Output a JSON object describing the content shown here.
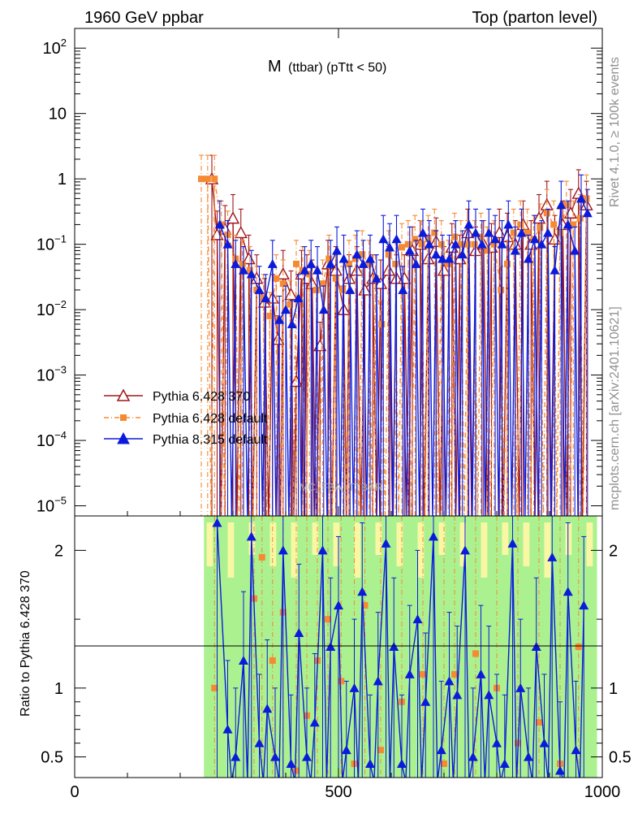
{
  "header": {
    "left": "1960 GeV ppbar",
    "right": "Top (parton level)"
  },
  "side_text": {
    "rivet": "Rivet 4.1.0, ≥ 100k events",
    "mcplots": "mcplots.cern.ch [arXiv:2401.10621]"
  },
  "chart_data": {
    "type": "line",
    "title": "M (ttbar) (pTtt < 50)",
    "title_main": "M",
    "title_sub": "(ttbar) (pTtt < 50)",
    "watermark": "MC_FBA_TTBAR",
    "xlabel": "",
    "ylabel": "",
    "ratio_ylabel": "Ratio to Pythia 6.428 370",
    "xlim": [
      0,
      1000
    ],
    "ylim_log": [
      7e-06,
      200
    ],
    "ratio_ylim": [
      0.35,
      2.25
    ],
    "x_ticks": [
      {
        "value": 0,
        "label": "0"
      },
      {
        "value": 500,
        "label": "500"
      },
      {
        "value": 1000,
        "label": "1000"
      }
    ],
    "y_ticks": [
      {
        "value": 100,
        "base": "10",
        "exp": "2"
      },
      {
        "value": 10,
        "base": "10",
        "exp": ""
      },
      {
        "value": 1,
        "base": "1",
        "exp": ""
      },
      {
        "value": 0.1,
        "base": "10",
        "exp": "−1"
      },
      {
        "value": 0.01,
        "base": "10",
        "exp": "−2"
      },
      {
        "value": 0.001,
        "base": "10",
        "exp": "−3"
      },
      {
        "value": 0.0001,
        "base": "10",
        "exp": "−4"
      },
      {
        "value": 1e-05,
        "base": "10",
        "exp": "−5"
      }
    ],
    "ratio_ticks": [
      {
        "value": 0.5,
        "label": "0.5"
      },
      {
        "value": 1,
        "label": "1"
      },
      {
        "value": 2,
        "label": "2"
      }
    ],
    "legend_position": "middle-left",
    "series": [
      {
        "name": "Pythia 6.428 370",
        "color": "#a0161c",
        "marker": "open-triangle",
        "line": "solid",
        "points": [
          [
            260,
            1.0
          ],
          [
            270,
            0.14
          ],
          [
            285,
            0.17
          ],
          [
            300,
            0.25
          ],
          [
            315,
            0.15
          ],
          [
            330,
            0.06
          ],
          [
            345,
            0.03
          ],
          [
            360,
            0.013
          ],
          [
            375,
            0.015
          ],
          [
            385,
            0.0035
          ],
          [
            395,
            0.035
          ],
          [
            410,
            0.017
          ],
          [
            420,
            0.0008
          ],
          [
            430,
            0.035
          ],
          [
            440,
            0.03
          ],
          [
            450,
            0.025
          ],
          [
            465,
            0.0028
          ],
          [
            480,
            0.05
          ],
          [
            495,
            0.04
          ],
          [
            510,
            0.01
          ],
          [
            520,
            0.03
          ],
          [
            535,
            0.04
          ],
          [
            550,
            0.02
          ],
          [
            565,
            0.03
          ],
          [
            580,
            0.025
          ],
          [
            595,
            0.04
          ],
          [
            610,
            0.03
          ],
          [
            625,
            0.03
          ],
          [
            640,
            0.08
          ],
          [
            655,
            0.1
          ],
          [
            670,
            0.06
          ],
          [
            685,
            0.11
          ],
          [
            700,
            0.04
          ],
          [
            715,
            0.09
          ],
          [
            730,
            0.06
          ],
          [
            745,
            0.15
          ],
          [
            760,
            0.08
          ],
          [
            775,
            0.1
          ],
          [
            790,
            0.09
          ],
          [
            805,
            0.15
          ],
          [
            820,
            0.13
          ],
          [
            835,
            0.1
          ],
          [
            850,
            0.2
          ],
          [
            865,
            0.1
          ],
          [
            880,
            0.25
          ],
          [
            895,
            0.4
          ],
          [
            910,
            0.12
          ],
          [
            925,
            0.2
          ],
          [
            940,
            0.3
          ],
          [
            955,
            0.6
          ],
          [
            970,
            0.4
          ]
        ]
      },
      {
        "name": "Pythia 6.428 default",
        "color": "#f58a32",
        "marker": "square",
        "line": "dash-dot",
        "points": [
          [
            240,
            1.0
          ],
          [
            252,
            1.0
          ],
          [
            265,
            1.0
          ],
          [
            278,
            0.2
          ],
          [
            290,
            0.14
          ],
          [
            305,
            0.06
          ],
          [
            318,
            0.05
          ],
          [
            332,
            0.04
          ],
          [
            345,
            0.02
          ],
          [
            358,
            0.015
          ],
          [
            370,
            0.008
          ],
          [
            382,
            0.03
          ],
          [
            395,
            0.025
          ],
          [
            408,
            0.012
          ],
          [
            420,
            0.05
          ],
          [
            432,
            0.04
          ],
          [
            445,
            0.035
          ],
          [
            458,
            0.02
          ],
          [
            470,
            0.025
          ],
          [
            482,
            0.06
          ],
          [
            495,
            0.03
          ],
          [
            508,
            0.02
          ],
          [
            520,
            0.05
          ],
          [
            532,
            0.06
          ],
          [
            545,
            0.07
          ],
          [
            558,
            0.05
          ],
          [
            570,
            0.03
          ],
          [
            582,
            0.006
          ],
          [
            595,
            0.07
          ],
          [
            608,
            0.05
          ],
          [
            620,
            0.09
          ],
          [
            632,
            0.1
          ],
          [
            645,
            0.12
          ],
          [
            658,
            0.1
          ],
          [
            670,
            0.12
          ],
          [
            682,
            0.15
          ],
          [
            695,
            0.1
          ],
          [
            708,
            0.05
          ],
          [
            720,
            0.13
          ],
          [
            732,
            0.1
          ],
          [
            745,
            0.1
          ],
          [
            758,
            0.1
          ],
          [
            770,
            0.13
          ],
          [
            782,
            0.08
          ],
          [
            795,
            0.1
          ],
          [
            808,
            0.02
          ],
          [
            820,
            0.05
          ],
          [
            832,
            0.15
          ],
          [
            845,
            0.2
          ],
          [
            858,
            0.15
          ],
          [
            870,
            0.12
          ],
          [
            882,
            0.18
          ],
          [
            895,
            0.3
          ],
          [
            908,
            0.2
          ],
          [
            920,
            0.15
          ],
          [
            932,
            0.4
          ],
          [
            945,
            0.2
          ],
          [
            958,
            0.25
          ],
          [
            970,
            0.5
          ]
        ]
      },
      {
        "name": "Pythia 8.315 default",
        "color": "#0b1bdb",
        "marker": "filled-triangle",
        "line": "solid",
        "points": [
          [
            275,
            0.2
          ],
          [
            290,
            0.1
          ],
          [
            305,
            0.05
          ],
          [
            320,
            0.04
          ],
          [
            335,
            0.035
          ],
          [
            350,
            0.02
          ],
          [
            362,
            0.015
          ],
          [
            375,
            0.05
          ],
          [
            388,
            0.007
          ],
          [
            400,
            0.01
          ],
          [
            412,
            0.006
          ],
          [
            424,
            0.015
          ],
          [
            436,
            0.04
          ],
          [
            448,
            0.05
          ],
          [
            460,
            0.04
          ],
          [
            472,
            0.01
          ],
          [
            485,
            0.05
          ],
          [
            497,
            0.08
          ],
          [
            510,
            0.06
          ],
          [
            522,
            0.02
          ],
          [
            535,
            0.07
          ],
          [
            547,
            0.05
          ],
          [
            560,
            0.06
          ],
          [
            572,
            0.03
          ],
          [
            585,
            0.12
          ],
          [
            597,
            0.09
          ],
          [
            610,
            0.12
          ],
          [
            622,
            0.02
          ],
          [
            635,
            0.08
          ],
          [
            647,
            0.05
          ],
          [
            660,
            0.15
          ],
          [
            672,
            0.1
          ],
          [
            685,
            0.07
          ],
          [
            697,
            0.06
          ],
          [
            710,
            0.06
          ],
          [
            722,
            0.1
          ],
          [
            735,
            0.07
          ],
          [
            747,
            0.2
          ],
          [
            760,
            0.15
          ],
          [
            772,
            0.1
          ],
          [
            785,
            0.15
          ],
          [
            797,
            0.12
          ],
          [
            810,
            0.1
          ],
          [
            822,
            0.2
          ],
          [
            835,
            0.08
          ],
          [
            847,
            0.15
          ],
          [
            860,
            0.06
          ],
          [
            872,
            0.12
          ],
          [
            885,
            0.1
          ],
          [
            897,
            0.15
          ],
          [
            910,
            0.04
          ],
          [
            922,
            0.4
          ],
          [
            935,
            0.2
          ],
          [
            948,
            0.08
          ],
          [
            960,
            0.5
          ],
          [
            972,
            0.3
          ]
        ]
      }
    ],
    "ratio_series": [
      {
        "name": "Pythia 6.428 default",
        "points": [
          [
            265,
            1.0
          ],
          [
            340,
            1.65
          ],
          [
            355,
            1.95
          ],
          [
            375,
            1.2
          ],
          [
            395,
            1.55
          ],
          [
            420,
            0.4
          ],
          [
            440,
            0.8
          ],
          [
            460,
            1.2
          ],
          [
            480,
            1.5
          ],
          [
            505,
            1.05
          ],
          [
            530,
            0.45
          ],
          [
            550,
            1.6
          ],
          [
            580,
            0.55
          ],
          [
            620,
            0.9
          ],
          [
            660,
            1.1
          ],
          [
            700,
            0.45
          ],
          [
            720,
            1.1
          ],
          [
            760,
            1.25
          ],
          [
            800,
            1.0
          ],
          [
            840,
            0.6
          ],
          [
            880,
            0.75
          ],
          [
            920,
            0.45
          ],
          [
            955,
            1.3
          ]
        ]
      },
      {
        "name": "Pythia 8.315 default",
        "points": [
          [
            270,
            2.2
          ],
          [
            290,
            0.7
          ],
          [
            305,
            0.5
          ],
          [
            320,
            1.2
          ],
          [
            335,
            2.1
          ],
          [
            350,
            0.6
          ],
          [
            365,
            0.85
          ],
          [
            380,
            0.5
          ],
          [
            395,
            2.0
          ],
          [
            410,
            0.45
          ],
          [
            425,
            1.4
          ],
          [
            440,
            0.5
          ],
          [
            455,
            0.75
          ],
          [
            470,
            2.0
          ],
          [
            485,
            1.3
          ],
          [
            500,
            1.6
          ],
          [
            515,
            0.55
          ],
          [
            530,
            1.0
          ],
          [
            545,
            1.7
          ],
          [
            560,
            0.45
          ],
          [
            575,
            1.05
          ],
          [
            590,
            2.05
          ],
          [
            605,
            1.3
          ],
          [
            620,
            0.45
          ],
          [
            635,
            1.1
          ],
          [
            650,
            1.5
          ],
          [
            665,
            0.9
          ],
          [
            680,
            2.1
          ],
          [
            695,
            0.55
          ],
          [
            710,
            1.05
          ],
          [
            725,
            0.95
          ],
          [
            740,
            2.0
          ],
          [
            755,
            0.5
          ],
          [
            770,
            1.1
          ],
          [
            785,
            0.95
          ],
          [
            800,
            0.6
          ],
          [
            815,
            0.45
          ],
          [
            830,
            2.05
          ],
          [
            845,
            1.0
          ],
          [
            860,
            0.5
          ],
          [
            875,
            1.3
          ],
          [
            890,
            0.6
          ],
          [
            905,
            1.95
          ],
          [
            920,
            0.4
          ],
          [
            935,
            1.7
          ],
          [
            950,
            0.55
          ],
          [
            965,
            1.6
          ]
        ]
      }
    ]
  }
}
